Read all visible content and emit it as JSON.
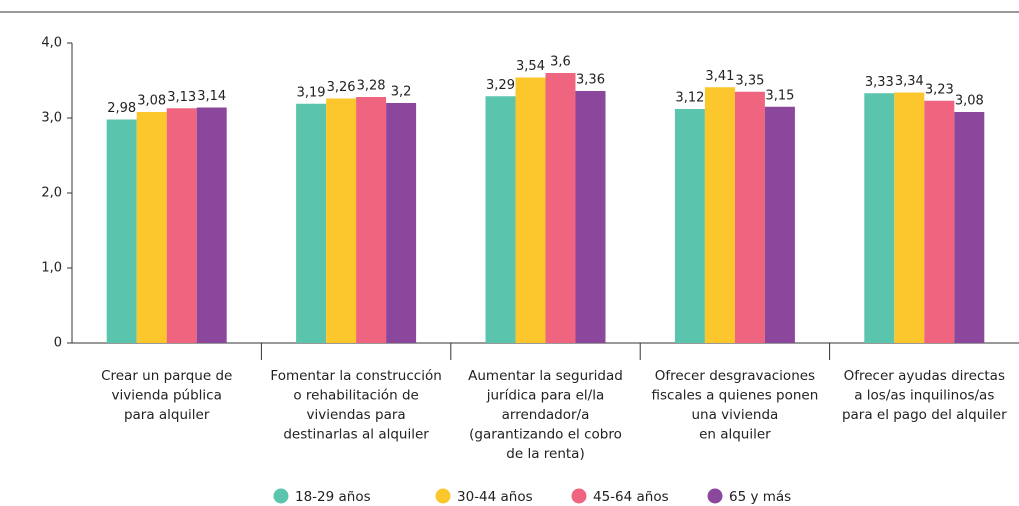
{
  "chart_data": {
    "type": "bar",
    "categories": [
      [
        "Crear un parque de",
        "vivienda pública",
        "para alquiler"
      ],
      [
        "Fomentar la construcción",
        "o rehabilitación de",
        "viviendas para",
        "destinarlas al alquiler"
      ],
      [
        "Aumentar la seguridad",
        "jurídica para el/la",
        "arrendador/a",
        "(garantizando el cobro",
        "de la renta)"
      ],
      [
        "Ofrecer desgravaciones",
        "fiscales a quienes ponen",
        "una vivienda",
        "en alquiler"
      ],
      [
        "Ofrecer ayudas directas",
        "a los/as inquilinos/as",
        "para el pago del alquiler"
      ]
    ],
    "series": [
      {
        "name": "18-29 años",
        "color": "#5bc4ad",
        "values": [
          2.98,
          3.19,
          3.29,
          3.12,
          3.33
        ],
        "value_labels": [
          "2,98",
          "3,19",
          "3,29",
          "3,12",
          "3,33"
        ]
      },
      {
        "name": "30-44 años",
        "color": "#fcc72c",
        "values": [
          3.08,
          3.26,
          3.54,
          3.41,
          3.34
        ],
        "value_labels": [
          "3,08",
          "3,26",
          "3,54",
          "3,41",
          "3,34"
        ]
      },
      {
        "name": "45-64 años",
        "color": "#ef6580",
        "values": [
          3.13,
          3.28,
          3.6,
          3.35,
          3.23
        ],
        "value_labels": [
          "3,13",
          "3,28",
          "3,6",
          "3,35",
          "3,23"
        ]
      },
      {
        "name": "65 y más",
        "color": "#8b479b",
        "values": [
          3.14,
          3.2,
          3.36,
          3.15,
          3.08
        ],
        "value_labels": [
          "3,14",
          "3,2",
          "3,36",
          "3,15",
          "3,08"
        ]
      }
    ],
    "ylim": [
      0,
      4
    ],
    "yticks": [
      0,
      {
        "value": 1,
        "label": "1,0"
      },
      {
        "value": 2,
        "label": "2,0"
      },
      {
        "value": 3,
        "label": "3,0"
      },
      {
        "value": 4,
        "label": "4,0"
      }
    ],
    "legend": "bottom"
  }
}
